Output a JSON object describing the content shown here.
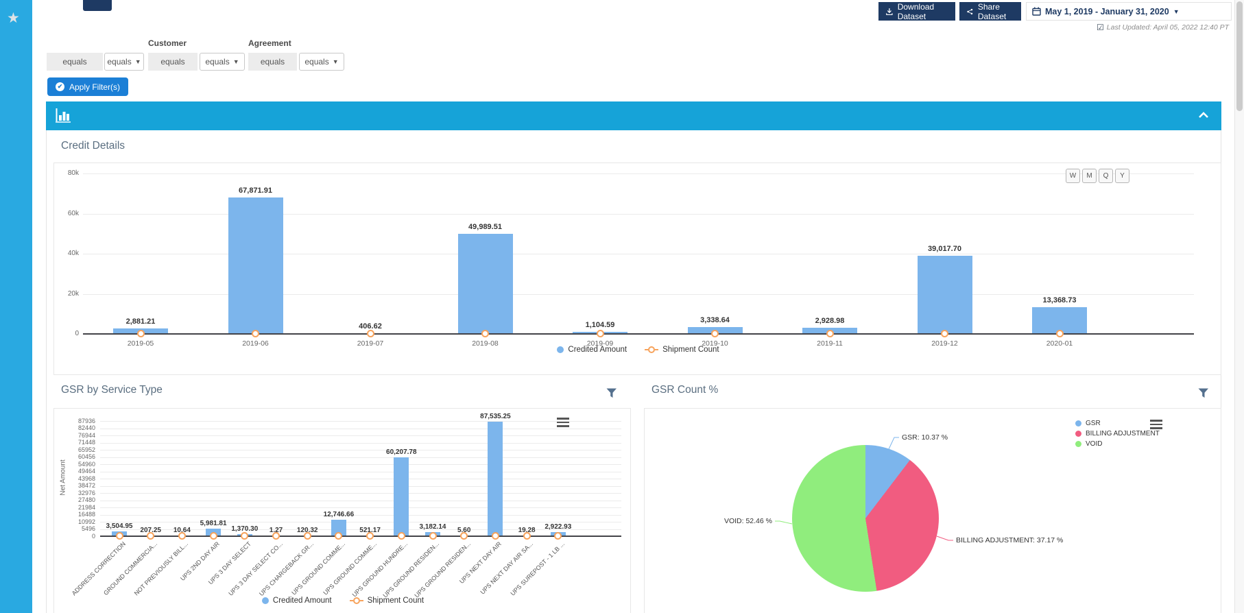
{
  "sidebar": {
    "star_icon": "favorite-star"
  },
  "toolbar": {
    "download_label": "Download Dataset",
    "share_label": "Share Dataset",
    "date_range": "May 1, 2019 - January 31, 2020",
    "last_updated": "Last Updated: April 05, 2022 12:40 PT"
  },
  "filters": {
    "groups": [
      {
        "label": "",
        "field_value": "equals",
        "operator": "equals"
      },
      {
        "label": "Customer",
        "field_value": "equals",
        "operator": "equals"
      },
      {
        "label": "Agreement",
        "field_value": "equals",
        "operator": "equals"
      }
    ],
    "apply_label": "Apply Filter(s)"
  },
  "chart_data": [
    {
      "id": "credit_details",
      "type": "bar",
      "title": "Credit Details",
      "range_buttons": [
        "W",
        "M",
        "Q",
        "Y"
      ],
      "categories": [
        "2019-05",
        "2019-06",
        "2019-07",
        "2019-08",
        "2019-09",
        "2019-10",
        "2019-11",
        "2019-12",
        "2020-01"
      ],
      "series": [
        {
          "name": "Credited Amount",
          "type": "column",
          "color": "#7cb5ec",
          "values": [
            2881.21,
            67871.91,
            406.62,
            49989.51,
            1104.59,
            3338.64,
            2928.98,
            39017.7,
            13368.73
          ],
          "data_labels": [
            "2,881.21",
            "67,871.91",
            "406.62",
            "49,989.51",
            "1,104.59",
            "3,338.64",
            "2,928.98",
            "39,017.70",
            "13,368.73"
          ]
        },
        {
          "name": "Shipment Count",
          "type": "line",
          "color": "#434348",
          "marker_color": "#f7a35c",
          "values": [
            0,
            0,
            0,
            0,
            0,
            0,
            0,
            0,
            0
          ]
        }
      ],
      "ylim": [
        0,
        80000
      ],
      "yticks": [
        {
          "value": 80000,
          "label": "80k"
        },
        {
          "value": 60000,
          "label": "60k"
        },
        {
          "value": 40000,
          "label": "40k"
        },
        {
          "value": 20000,
          "label": "20k"
        },
        {
          "value": 0,
          "label": "0"
        }
      ],
      "grid": true,
      "legend": [
        "Credited Amount",
        "Shipment Count"
      ],
      "legend_position": "bottom-center"
    },
    {
      "id": "gsr_by_service_type",
      "type": "bar",
      "title": "GSR by Service Type",
      "ylabel": "Net Amount",
      "categories": [
        "ADDRESS CORRECTION",
        "GROUND COMMERCIA...",
        "NOT PREVIOUSLY BILL...",
        "UPS 2ND DAY AIR",
        "UPS 3 DAY SELECT",
        "UPS 3 DAY SELECT CO...",
        "UPS CHARGEBACK GR...",
        "UPS GROUND COMME...",
        "UPS GROUND COMME...",
        "UPS GROUND HUNDRE...",
        "UPS GROUND RESIDEN...",
        "UPS GROUND RESIDEN...",
        "UPS NEXT DAY AIR",
        "UPS NEXT DAY AIR SA...",
        "UPS SUREPOST - 1 LB ..."
      ],
      "series": [
        {
          "name": "Credited Amount",
          "type": "column",
          "color": "#7cb5ec",
          "values": [
            3504.95,
            207.25,
            10.64,
            5981.81,
            1370.3,
            1.27,
            120.32,
            12746.66,
            521.17,
            60207.78,
            3182.14,
            5.6,
            87535.25,
            19.28,
            2922.93
          ],
          "data_labels": [
            "3,504.95",
            "207.25",
            "10.64",
            "5,981.81",
            "1,370.30",
            "1.27",
            "120.32",
            "12,746.66",
            "521.17",
            "60,207.78",
            "3,182.14",
            "5.60",
            "87,535.25",
            "19.28",
            "2,922.93"
          ]
        },
        {
          "name": "Shipment Count",
          "type": "line",
          "color": "#434348",
          "marker_color": "#f7a35c",
          "values": [
            0,
            0,
            0,
            0,
            0,
            0,
            0,
            0,
            0,
            0,
            0,
            0,
            0,
            0,
            0
          ]
        }
      ],
      "ylim": [
        0,
        87936
      ],
      "yticks": [
        87936,
        82440,
        76944,
        71448,
        65952,
        60456,
        54960,
        49464,
        43968,
        38472,
        32976,
        27480,
        21984,
        16488,
        10992,
        5496,
        0
      ],
      "grid": true,
      "legend": [
        "Credited Amount",
        "Shipment Count"
      ],
      "legend_position": "bottom-center"
    },
    {
      "id": "gsr_count_pct",
      "type": "pie",
      "title": "GSR Count %",
      "slices": [
        {
          "name": "GSR",
          "value": 10.37,
          "label": "GSR: 10.37 %",
          "color": "#7cb5ec"
        },
        {
          "name": "BILLING ADJUSTMENT",
          "value": 37.17,
          "label": "BILLING ADJUSTMENT: 37.17 %",
          "color": "#f15c80"
        },
        {
          "name": "VOID",
          "value": 52.46,
          "label": "VOID: 52.46 %",
          "color": "#90ed7d"
        }
      ],
      "legend_position": "top-right"
    }
  ]
}
